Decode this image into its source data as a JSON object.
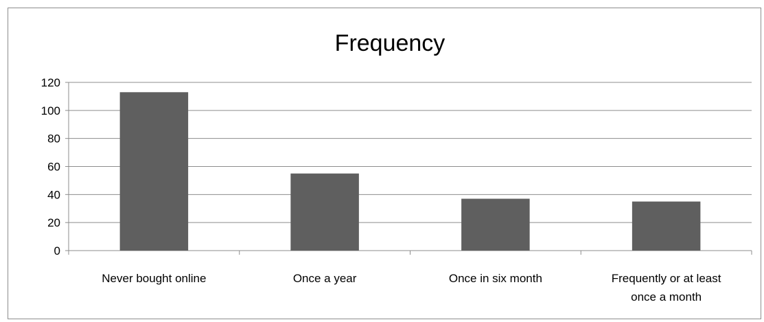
{
  "chart_data": {
    "type": "bar",
    "title": "Frequency",
    "xlabel": "",
    "ylabel": "",
    "categories": [
      "Never bought online",
      "Once a year",
      "Once in six month",
      "Frequently or at least once a month"
    ],
    "category_label_lines": [
      [
        "Never bought online"
      ],
      [
        "Once a year"
      ],
      [
        "Once in six month"
      ],
      [
        "Frequently or at least",
        "once a month"
      ]
    ],
    "values": [
      113,
      55,
      37,
      35
    ],
    "ylim": [
      0,
      120
    ],
    "yticks": [
      0,
      20,
      40,
      60,
      80,
      100,
      120
    ],
    "grid": true,
    "legend": "none",
    "colors": {
      "bar": "#5f5f5f",
      "grid": "#8c8c8c",
      "axis": "#8c8c8c",
      "frame": "#8c8c8c"
    }
  }
}
